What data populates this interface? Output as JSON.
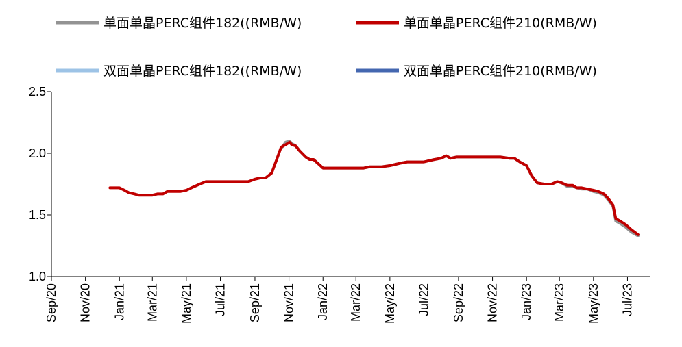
{
  "chart_data": {
    "type": "line",
    "title": "",
    "xlabel": "",
    "ylabel": "",
    "ylim": [
      1.0,
      2.5
    ],
    "yticks": [
      "1.0",
      "1.5",
      "2.0",
      "2.5"
    ],
    "grid": false,
    "legend_position": "top",
    "xlim": [
      "2020-09-01",
      "2023-08-10"
    ],
    "xticks": [
      {
        "date": "2020-09-01",
        "label": "Sep/20"
      },
      {
        "date": "2020-11-01",
        "label": "Nov/20"
      },
      {
        "date": "2021-01-01",
        "label": "Jan/21"
      },
      {
        "date": "2021-03-01",
        "label": "Mar/21"
      },
      {
        "date": "2021-05-01",
        "label": "May/21"
      },
      {
        "date": "2021-07-01",
        "label": "Jul/21"
      },
      {
        "date": "2021-09-01",
        "label": "Sep/21"
      },
      {
        "date": "2021-11-01",
        "label": "Nov/21"
      },
      {
        "date": "2022-01-01",
        "label": "Jan/22"
      },
      {
        "date": "2022-03-01",
        "label": "Mar/22"
      },
      {
        "date": "2022-05-01",
        "label": "May/22"
      },
      {
        "date": "2022-07-01",
        "label": "Jul/22"
      },
      {
        "date": "2022-09-01",
        "label": "Sep/22"
      },
      {
        "date": "2022-11-01",
        "label": "Nov/22"
      },
      {
        "date": "2023-01-01",
        "label": "Jan/23"
      },
      {
        "date": "2023-03-01",
        "label": "Mar/23"
      },
      {
        "date": "2023-05-01",
        "label": "May/23"
      },
      {
        "date": "2023-07-01",
        "label": "Jul/23"
      }
    ],
    "series": [
      {
        "name": "单面单晶PERC组件182((RMB/W)",
        "color": "#939393",
        "points": [
          [
            "2021-10-20",
            2.05
          ],
          [
            "2021-10-26",
            2.09
          ],
          [
            "2021-11-02",
            2.1
          ],
          [
            "2021-11-06",
            2.08
          ],
          [
            "2021-11-13",
            2.06
          ],
          [
            "2021-11-20",
            2.02
          ],
          [
            "2021-12-01",
            1.97
          ],
          [
            "2021-12-08",
            1.95
          ],
          [
            "2021-12-15",
            1.95
          ],
          [
            "2021-12-25",
            1.91
          ],
          [
            "2022-01-01",
            1.88
          ],
          [
            "2022-01-15",
            1.88
          ],
          [
            "2022-02-15",
            1.88
          ],
          [
            "2022-03-15",
            1.88
          ],
          [
            "2022-03-25",
            1.89
          ],
          [
            "2022-04-15",
            1.89
          ],
          [
            "2022-05-01",
            1.9
          ],
          [
            "2022-05-20",
            1.92
          ],
          [
            "2022-06-01",
            1.93
          ],
          [
            "2022-06-15",
            1.93
          ],
          [
            "2022-07-01",
            1.93
          ],
          [
            "2022-07-10",
            1.94
          ],
          [
            "2022-07-20",
            1.95
          ],
          [
            "2022-08-01",
            1.96
          ],
          [
            "2022-08-10",
            1.98
          ],
          [
            "2022-08-18",
            1.96
          ],
          [
            "2022-08-28",
            1.97
          ],
          [
            "2022-09-15",
            1.97
          ],
          [
            "2022-10-15",
            1.97
          ],
          [
            "2022-11-01",
            1.97
          ],
          [
            "2022-11-15",
            1.97
          ],
          [
            "2022-12-01",
            1.96
          ],
          [
            "2022-12-10",
            1.96
          ],
          [
            "2022-12-20",
            1.93
          ],
          [
            "2023-01-01",
            1.9
          ],
          [
            "2023-01-10",
            1.82
          ],
          [
            "2023-01-20",
            1.76
          ],
          [
            "2023-02-01",
            1.75
          ],
          [
            "2023-02-15",
            1.75
          ],
          [
            "2023-02-25",
            1.77
          ],
          [
            "2023-03-05",
            1.76
          ],
          [
            "2023-03-15",
            1.73
          ],
          [
            "2023-03-25",
            1.73
          ],
          [
            "2023-04-01",
            1.72
          ],
          [
            "2023-04-10",
            1.71
          ],
          [
            "2023-04-20",
            1.71
          ],
          [
            "2023-05-01",
            1.69
          ],
          [
            "2023-05-10",
            1.68
          ],
          [
            "2023-05-20",
            1.66
          ],
          [
            "2023-05-28",
            1.62
          ],
          [
            "2023-06-05",
            1.57
          ],
          [
            "2023-06-10",
            1.45
          ],
          [
            "2023-06-18",
            1.43
          ],
          [
            "2023-06-28",
            1.4
          ],
          [
            "2023-07-08",
            1.36
          ],
          [
            "2023-07-20",
            1.33
          ]
        ]
      },
      {
        "name": "单面单晶PERC组件210(RMB/W)",
        "color": "#c00000",
        "points": [
          [
            "2020-12-15",
            1.72
          ],
          [
            "2021-01-01",
            1.72
          ],
          [
            "2021-01-10",
            1.7
          ],
          [
            "2021-01-18",
            1.68
          ],
          [
            "2021-01-28",
            1.67
          ],
          [
            "2021-02-05",
            1.66
          ],
          [
            "2021-02-20",
            1.66
          ],
          [
            "2021-03-01",
            1.66
          ],
          [
            "2021-03-10",
            1.67
          ],
          [
            "2021-03-20",
            1.67
          ],
          [
            "2021-03-28",
            1.69
          ],
          [
            "2021-04-10",
            1.69
          ],
          [
            "2021-04-20",
            1.69
          ],
          [
            "2021-05-01",
            1.7
          ],
          [
            "2021-05-10",
            1.72
          ],
          [
            "2021-05-25",
            1.75
          ],
          [
            "2021-06-05",
            1.77
          ],
          [
            "2021-06-20",
            1.77
          ],
          [
            "2021-07-01",
            1.77
          ],
          [
            "2021-07-10",
            1.77
          ],
          [
            "2021-07-20",
            1.77
          ],
          [
            "2021-08-01",
            1.77
          ],
          [
            "2021-08-20",
            1.77
          ],
          [
            "2021-09-01",
            1.79
          ],
          [
            "2021-09-10",
            1.8
          ],
          [
            "2021-09-20",
            1.8
          ],
          [
            "2021-10-01",
            1.84
          ],
          [
            "2021-10-10",
            1.95
          ],
          [
            "2021-10-18",
            2.05
          ],
          [
            "2021-10-26",
            2.07
          ],
          [
            "2021-11-02",
            2.09
          ],
          [
            "2021-11-06",
            2.07
          ],
          [
            "2021-11-13",
            2.06
          ],
          [
            "2021-11-20",
            2.02
          ],
          [
            "2021-12-01",
            1.97
          ],
          [
            "2021-12-08",
            1.95
          ],
          [
            "2021-12-15",
            1.95
          ],
          [
            "2021-12-25",
            1.91
          ],
          [
            "2022-01-01",
            1.88
          ],
          [
            "2022-01-15",
            1.88
          ],
          [
            "2022-02-15",
            1.88
          ],
          [
            "2022-03-15",
            1.88
          ],
          [
            "2022-03-25",
            1.89
          ],
          [
            "2022-04-15",
            1.89
          ],
          [
            "2022-05-01",
            1.9
          ],
          [
            "2022-05-20",
            1.92
          ],
          [
            "2022-06-01",
            1.93
          ],
          [
            "2022-06-15",
            1.93
          ],
          [
            "2022-07-01",
            1.93
          ],
          [
            "2022-07-10",
            1.94
          ],
          [
            "2022-07-20",
            1.95
          ],
          [
            "2022-08-01",
            1.96
          ],
          [
            "2022-08-10",
            1.98
          ],
          [
            "2022-08-18",
            1.96
          ],
          [
            "2022-08-28",
            1.97
          ],
          [
            "2022-09-15",
            1.97
          ],
          [
            "2022-10-15",
            1.97
          ],
          [
            "2022-11-01",
            1.97
          ],
          [
            "2022-11-15",
            1.97
          ],
          [
            "2022-12-01",
            1.96
          ],
          [
            "2022-12-10",
            1.96
          ],
          [
            "2022-12-20",
            1.93
          ],
          [
            "2023-01-01",
            1.9
          ],
          [
            "2023-01-10",
            1.82
          ],
          [
            "2023-01-20",
            1.76
          ],
          [
            "2023-02-01",
            1.75
          ],
          [
            "2023-02-15",
            1.75
          ],
          [
            "2023-02-25",
            1.77
          ],
          [
            "2023-03-05",
            1.76
          ],
          [
            "2023-03-15",
            1.74
          ],
          [
            "2023-03-25",
            1.74
          ],
          [
            "2023-04-01",
            1.72
          ],
          [
            "2023-04-10",
            1.72
          ],
          [
            "2023-04-20",
            1.71
          ],
          [
            "2023-05-01",
            1.7
          ],
          [
            "2023-05-10",
            1.69
          ],
          [
            "2023-05-20",
            1.67
          ],
          [
            "2023-05-28",
            1.63
          ],
          [
            "2023-06-05",
            1.58
          ],
          [
            "2023-06-10",
            1.47
          ],
          [
            "2023-06-18",
            1.45
          ],
          [
            "2023-06-28",
            1.42
          ],
          [
            "2023-07-08",
            1.38
          ],
          [
            "2023-07-20",
            1.34
          ]
        ]
      },
      {
        "name": "双面单晶PERC组件182((RMB/W)",
        "color": "#9dc3e6",
        "points": []
      },
      {
        "name": "双面单晶PERC组件210(RMB/W)",
        "color": "#4467b0",
        "points": []
      }
    ]
  }
}
